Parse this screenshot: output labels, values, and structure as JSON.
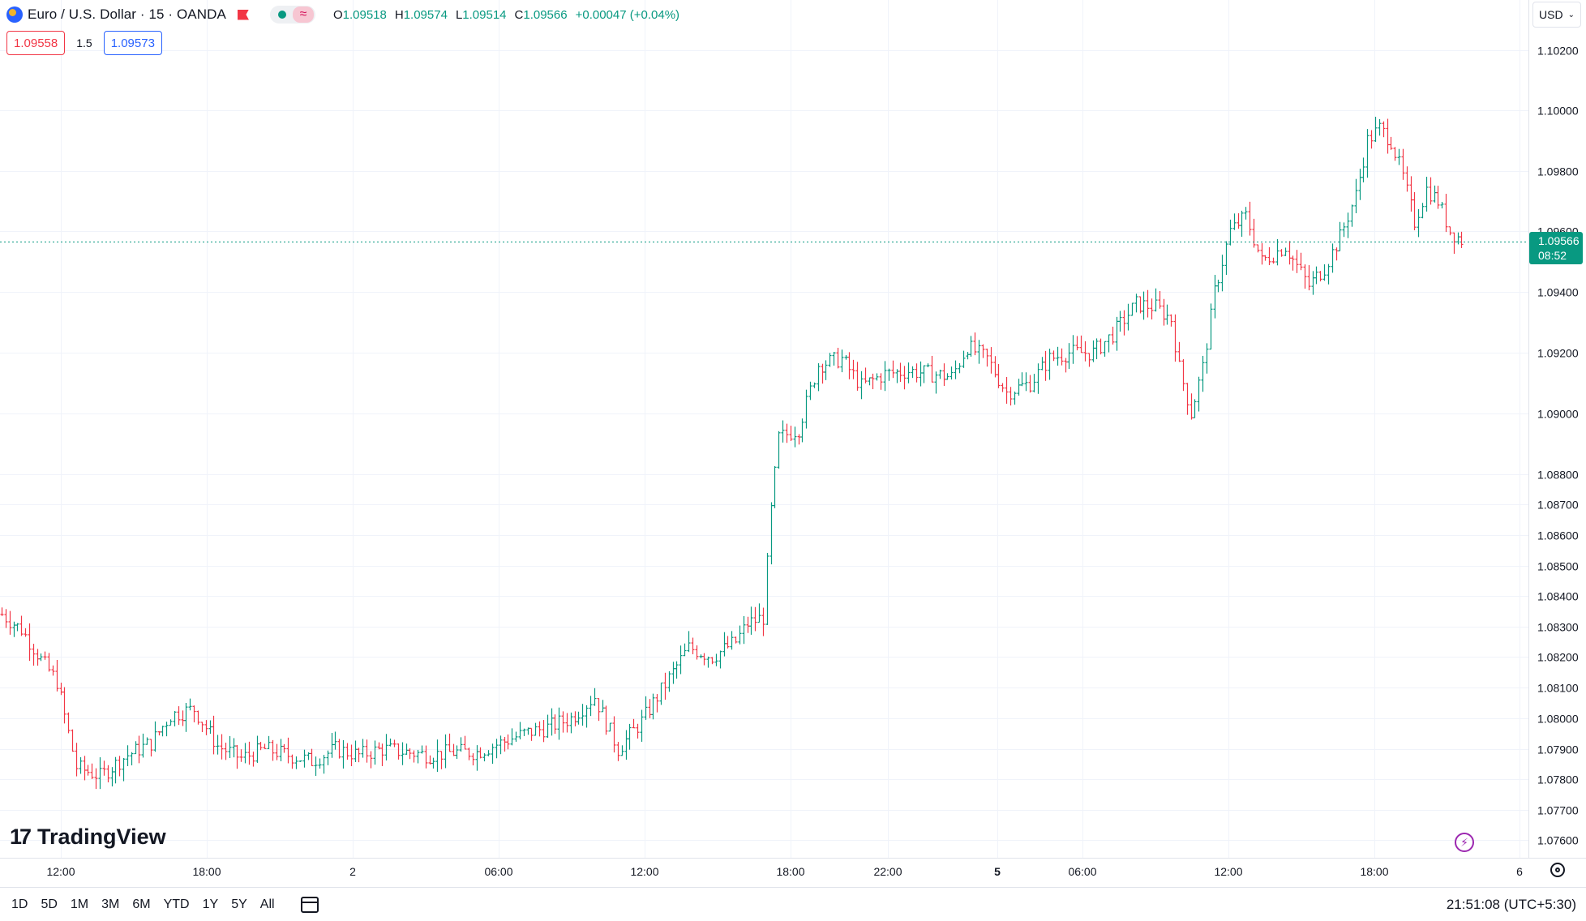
{
  "header": {
    "symbol_title": "Euro / U.S. Dollar · 15 · OANDA",
    "ohlc": {
      "open_key": "O",
      "open": "1.09518",
      "high_key": "H",
      "high": "1.09574",
      "low_key": "L",
      "low": "1.09514",
      "close_key": "C",
      "close": "1.09566",
      "change": "+0.00047 (+0.04%)"
    },
    "sell_price": "1.09558",
    "spread": "1.5",
    "buy_price": "1.09573",
    "currency": "USD",
    "currency_icon": "chevron-down-icon"
  },
  "last_price": {
    "price": "1.09566",
    "countdown": "08:52"
  },
  "brand": "TradingView",
  "bottom_bar": {
    "ranges": [
      "1D",
      "5D",
      "1M",
      "3M",
      "6M",
      "YTD",
      "1Y",
      "5Y",
      "All"
    ],
    "clock": "21:51:08 (UTC+5:30)"
  },
  "colors": {
    "up": "#089981",
    "down": "#f23645",
    "grid": "#f0f3fa",
    "axis_text": "#131722"
  },
  "chart_data": {
    "type": "candlestick",
    "ylim": [
      1.0756,
      1.1028
    ],
    "y_ticks": [
      "1.07600",
      "1.07700",
      "1.07800",
      "1.07900",
      "1.08000",
      "1.08100",
      "1.08200",
      "1.08300",
      "1.08400",
      "1.08500",
      "1.08600",
      "1.08700",
      "1.08800",
      "1.09000",
      "1.09200",
      "1.09400",
      "1.09600",
      "1.09800",
      "1.10000",
      "1.10200"
    ],
    "x_ticks": [
      "12:00",
      "18:00",
      "2",
      "06:00",
      "12:00",
      "18:00",
      "22:00",
      "5",
      "06:00",
      "12:00",
      "18:00",
      "6"
    ],
    "bold_x_ticks": [
      "5"
    ],
    "current_price": 1.09566,
    "anchors_bar_price": [
      [
        0,
        1.0834
      ],
      [
        5,
        1.0829
      ],
      [
        10,
        1.0819
      ],
      [
        14,
        1.0812
      ],
      [
        19,
        1.0784
      ],
      [
        25,
        1.0781
      ],
      [
        32,
        1.0788
      ],
      [
        38,
        1.0792
      ],
      [
        43,
        1.0801
      ],
      [
        49,
        1.0803
      ],
      [
        55,
        1.0791
      ],
      [
        61,
        1.0787
      ],
      [
        67,
        1.079
      ],
      [
        73,
        1.0788
      ],
      [
        79,
        1.0786
      ],
      [
        85,
        1.079
      ],
      [
        91,
        1.0788
      ],
      [
        97,
        1.079
      ],
      [
        103,
        1.0789
      ],
      [
        109,
        1.0788
      ],
      [
        115,
        1.0789
      ],
      [
        121,
        1.0789
      ],
      [
        127,
        1.0792
      ],
      [
        133,
        1.0795
      ],
      [
        139,
        1.0797
      ],
      [
        145,
        1.08
      ],
      [
        151,
        1.0807
      ],
      [
        157,
        1.079
      ],
      [
        163,
        1.0799
      ],
      [
        169,
        1.0811
      ],
      [
        175,
        1.0823
      ],
      [
        181,
        1.082
      ],
      [
        187,
        1.0825
      ],
      [
        190,
        1.0831
      ],
      [
        194,
        1.0833
      ],
      [
        196,
        1.0868
      ],
      [
        198,
        1.0892
      ],
      [
        203,
        1.0895
      ],
      [
        208,
        1.0916
      ],
      [
        214,
        1.0918
      ],
      [
        219,
        1.0909
      ],
      [
        225,
        1.0913
      ],
      [
        231,
        1.0914
      ],
      [
        237,
        1.0913
      ],
      [
        242,
        1.0912
      ],
      [
        246,
        1.0922
      ],
      [
        251,
        1.0918
      ],
      [
        256,
        1.0907
      ],
      [
        262,
        1.091
      ],
      [
        267,
        1.0918
      ],
      [
        272,
        1.092
      ],
      [
        278,
        1.092
      ],
      [
        283,
        1.0926
      ],
      [
        289,
        1.0936
      ],
      [
        294,
        1.0935
      ],
      [
        298,
        1.0931
      ],
      [
        300,
        1.0915
      ],
      [
        303,
        1.09
      ],
      [
        306,
        1.0915
      ],
      [
        309,
        1.094
      ],
      [
        313,
        1.096
      ],
      [
        317,
        1.0965
      ],
      [
        321,
        1.095
      ],
      [
        327,
        1.0955
      ],
      [
        333,
        1.0942
      ],
      [
        337,
        1.0948
      ],
      [
        341,
        1.0958
      ],
      [
        345,
        1.0972
      ],
      [
        348,
        1.099
      ],
      [
        351,
        1.0994
      ],
      [
        354,
        1.099
      ],
      [
        357,
        1.0978
      ],
      [
        360,
        1.0963
      ],
      [
        363,
        1.0974
      ],
      [
        366,
        1.097
      ],
      [
        369,
        1.096
      ],
      [
        372,
        1.0957
      ]
    ],
    "gap_after_bar": [
      245
    ]
  }
}
